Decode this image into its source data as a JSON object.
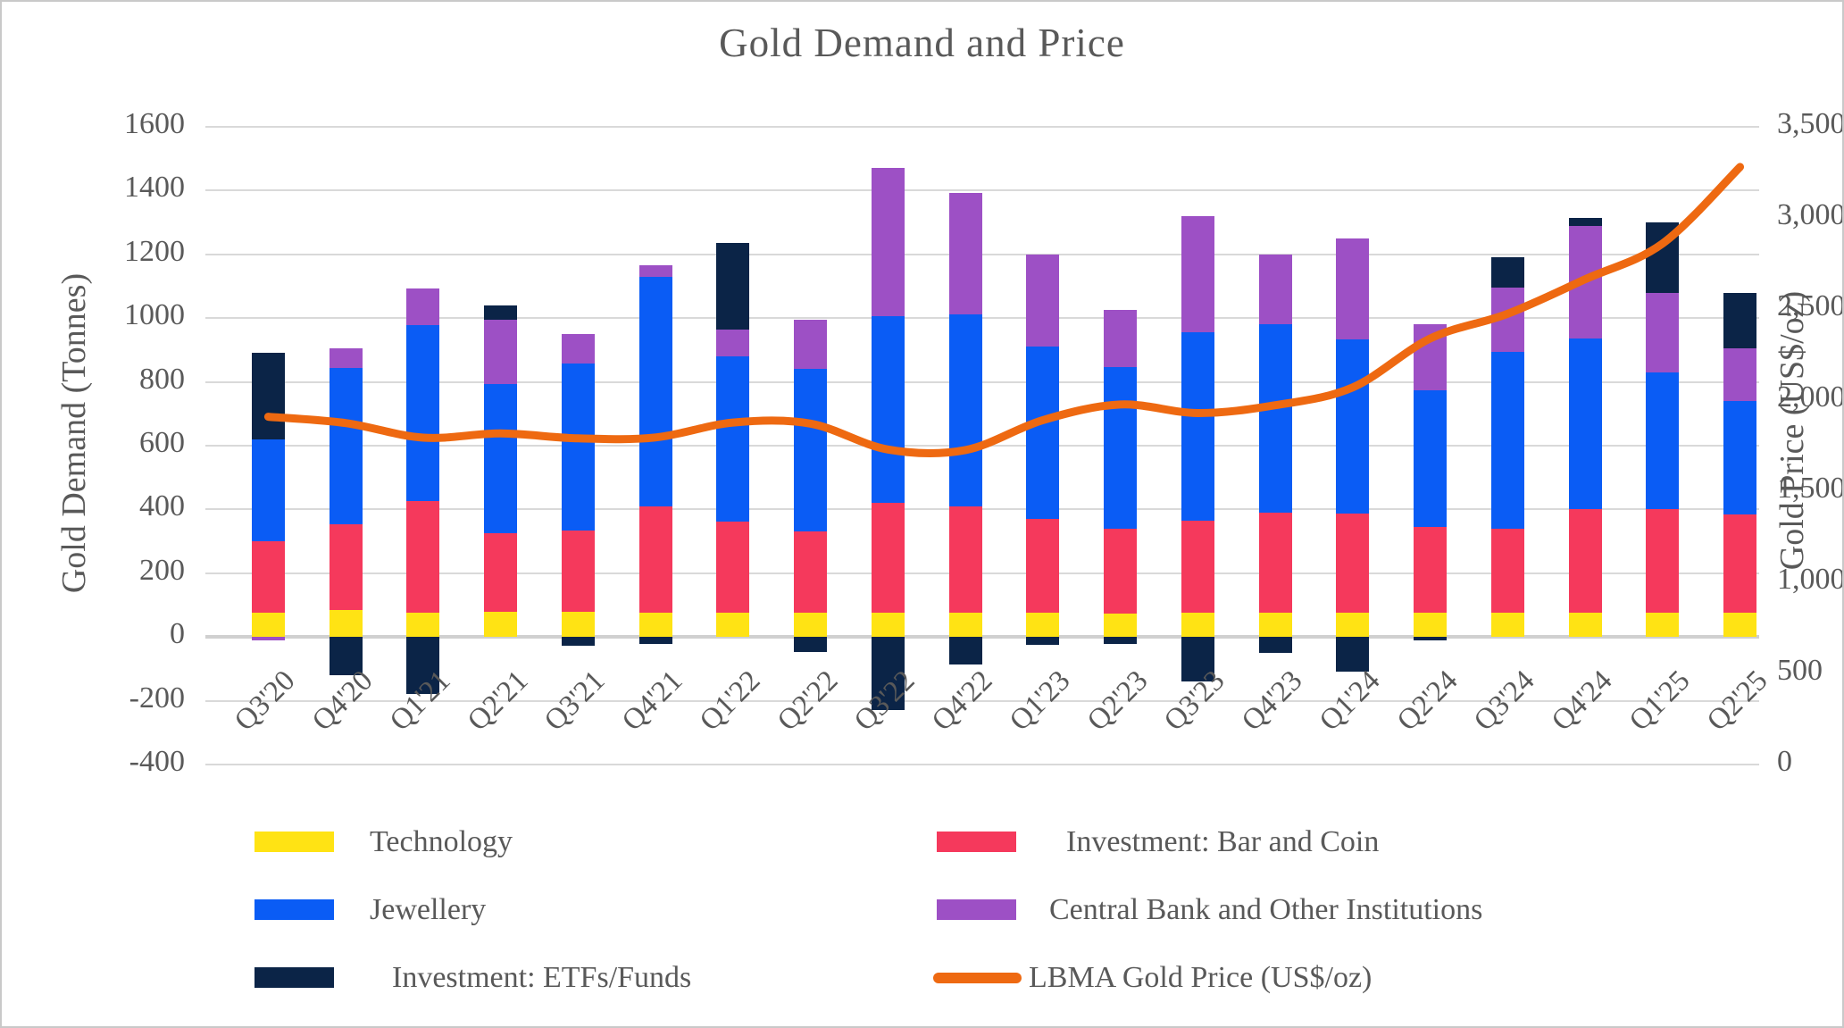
{
  "title": "Gold Demand and Price",
  "chart_data": {
    "type": "bar",
    "subtype": "stacked-bars-with-line-overlay",
    "title": "Gold Demand and Price",
    "categories": [
      "Q3'20",
      "Q4'20",
      "Q1'21",
      "Q2'21",
      "Q3'21",
      "Q4'21",
      "Q1'22",
      "Q2'22",
      "Q3'22",
      "Q4'22",
      "Q1'23",
      "Q2'23",
      "Q3'23",
      "Q4'23",
      "Q1'24",
      "Q2'24",
      "Q3'24",
      "Q4'24",
      "Q1'25",
      "Q2'25"
    ],
    "bar_series": [
      {
        "name": "Technology",
        "color": "#FFE314",
        "values": [
          77,
          84,
          75,
          79,
          78,
          77,
          76,
          76,
          76,
          76,
          75,
          73,
          75,
          75,
          75,
          75,
          75,
          75,
          75,
          75
        ]
      },
      {
        "name": "Investment: Bar and Coin",
        "color": "#F5395C",
        "values": [
          222,
          269,
          350,
          246,
          256,
          332,
          285,
          256,
          344,
          334,
          295,
          267,
          290,
          315,
          312,
          270,
          265,
          325,
          325,
          310
        ]
      },
      {
        "name": "Jewellery",
        "color": "#0A5CF5",
        "values": [
          321,
          491,
          553,
          469,
          525,
          721,
          520,
          508,
          585,
          602,
          540,
          507,
          590,
          590,
          547,
          430,
          555,
          535,
          430,
          355
        ]
      },
      {
        "name": "Central Bank and Other Institutions",
        "color": "#9D50C5",
        "values": [
          -11,
          60,
          116,
          200,
          91,
          37,
          84,
          155,
          465,
          380,
          290,
          180,
          365,
          220,
          315,
          205,
          200,
          355,
          250,
          165
        ]
      },
      {
        "name": "Investment: ETFs/Funds",
        "color": "#0B2447",
        "values": [
          272,
          -120,
          -180,
          45,
          -27,
          -22,
          272,
          -46,
          -230,
          -85,
          -25,
          -22,
          -140,
          -50,
          -110,
          -10,
          95,
          25,
          220,
          175
        ]
      }
    ],
    "line_series": {
      "name": "LBMA Gold Price (US$/oz)",
      "color": "#EE6911",
      "values": [
        1909,
        1874,
        1794,
        1817,
        1790,
        1795,
        1877,
        1871,
        1729,
        1726,
        1890,
        1976,
        1929,
        1972,
        2070,
        2338,
        2474,
        2663,
        2860,
        3280
      ]
    },
    "left_axis": {
      "title": "Gold Demand (Tonnes)",
      "min": -400,
      "max": 1600,
      "step": 200
    },
    "right_axis": {
      "title": "Gold Price (US$/oz)",
      "min": 0,
      "max": 3500,
      "step": 500
    },
    "grid": true,
    "legend_position": "bottom-two-columns",
    "styles": {
      "grid_color": "#D9D9D9",
      "zero_line_color": "#D0D0D0",
      "text_color": "#595959",
      "background": "#FFFFFF",
      "border_color": "#C9C9C9"
    }
  }
}
